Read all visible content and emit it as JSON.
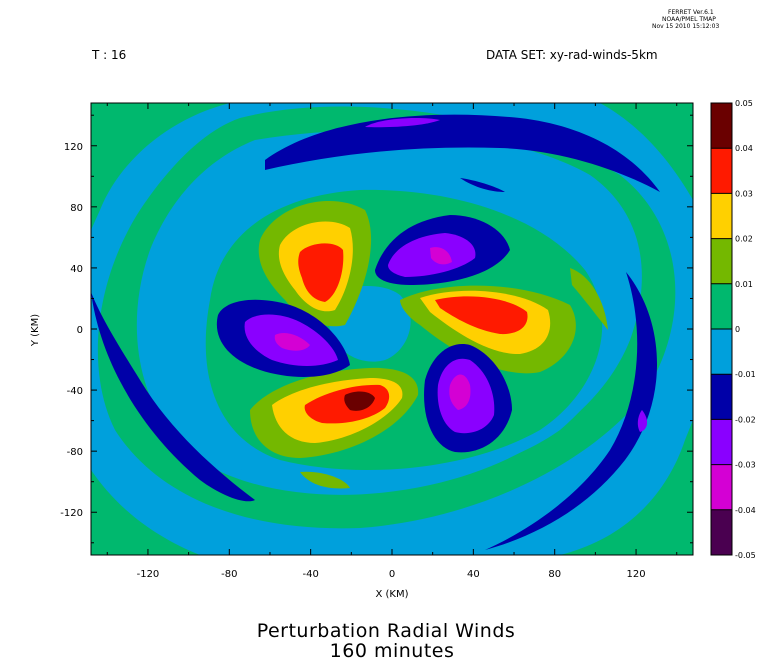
{
  "ferret_tag": [
    "FERRET Ver.6.1",
    "NOAA/PMEL TMAP",
    "Nov 15 2010 15:12:03"
  ],
  "header_left": "T : 16",
  "header_right": "DATA SET: xy-rad-winds-5km",
  "chart_data": {
    "type": "heatmap",
    "xlabel": "X (KM)",
    "ylabel": "Y (KM)",
    "title": [
      "Perturbation Radial Winds",
      "160 minutes"
    ],
    "xlim": [
      -148,
      148
    ],
    "ylim": [
      -148,
      148
    ],
    "xticks": [
      -120,
      -80,
      -40,
      0,
      40,
      80,
      120
    ],
    "yticks": [
      120,
      80,
      40,
      0,
      -40,
      -80,
      -120
    ],
    "colorbar": {
      "levels": [
        "0.05",
        "0.04",
        "0.03",
        "0.02",
        "0.01",
        "0",
        "-0.01",
        "-0.02",
        "-0.03",
        "-0.04",
        "-0.05"
      ],
      "colors": [
        "#6a0000",
        "#ff1a00",
        "#ffd000",
        "#74b800",
        "#00b86e",
        "#00a0dc",
        "#0000a8",
        "#8a00ff",
        "#d400d4",
        "#4a0050"
      ]
    },
    "field": {
      "description_units": "radial wind perturbation",
      "background_value": 0.0,
      "vortex_lobes": [
        {
          "x": -36,
          "y": 40,
          "value": 0.034
        },
        {
          "x": 28,
          "y": 45,
          "value": -0.03
        },
        {
          "x": 62,
          "y": 12,
          "value": 0.036
        },
        {
          "x": 40,
          "y": -40,
          "value": -0.033
        },
        {
          "x": -15,
          "y": -50,
          "value": 0.042
        },
        {
          "x": -55,
          "y": 0,
          "value": -0.032
        }
      ]
    },
    "colors": {
      "axis": "#000000",
      "background": "#ffffff"
    }
  }
}
